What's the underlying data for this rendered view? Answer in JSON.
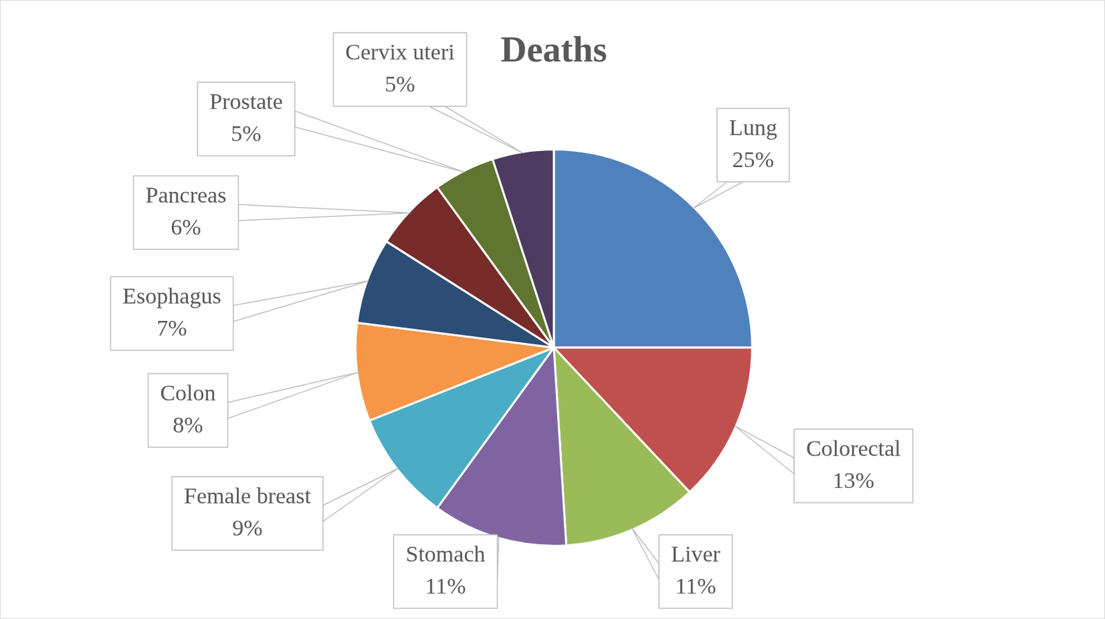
{
  "chart_data": {
    "type": "pie",
    "title": "Deaths",
    "categories": [
      "Lung",
      "Colorectal",
      "Liver",
      "Stomach",
      "Female breast",
      "Colon",
      "Esophagus",
      "Pancreas",
      "Prostate",
      "Cervix uteri"
    ],
    "values": [
      25,
      13,
      11,
      11,
      9,
      8,
      7,
      6,
      5,
      5
    ],
    "value_labels": [
      "25%",
      "13%",
      "11%",
      "11%",
      "9%",
      "8%",
      "7%",
      "6%",
      "5%",
      "5%"
    ],
    "colors": [
      "#4f81bd",
      "#c0504d",
      "#9bbb59",
      "#8064a2",
      "#4bacc6",
      "#f79646",
      "#2c4d75",
      "#772c2a",
      "#5f7530",
      "#4d3b62"
    ],
    "data_labels": true
  }
}
